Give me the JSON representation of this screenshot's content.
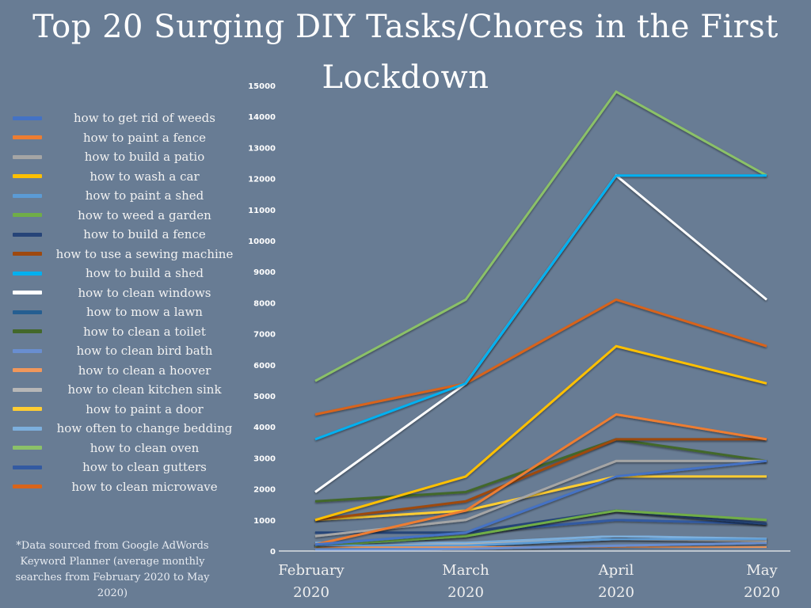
{
  "chart_data": {
    "type": "line",
    "title": "Top 20 Surging DIY Tasks/Chores in the First Lockdown",
    "title_lines": [
      "Top 20 Surging DIY Tasks/Chores in the First",
      "Lockdown"
    ],
    "xlabel": "",
    "ylabel": "",
    "categories": [
      "February 2020",
      "March 2020",
      "April 2020",
      "May 2020"
    ],
    "category_lines": [
      [
        "February",
        "2020"
      ],
      [
        "March",
        "2020"
      ],
      [
        "April",
        "2020"
      ],
      [
        "May",
        "2020"
      ]
    ],
    "ylim": [
      0,
      15000
    ],
    "yticks": [
      0,
      1000,
      2000,
      3000,
      4000,
      5000,
      6000,
      7000,
      8000,
      9000,
      10000,
      11000,
      12000,
      13000,
      14000,
      15000
    ],
    "grid": false,
    "legend_position": "left",
    "series": [
      {
        "name": "how to get rid of weeds",
        "color": "#4472c4",
        "values": [
          210,
          590,
          2400,
          2900
        ]
      },
      {
        "name": "how to paint a fence",
        "color": "#ed7d31",
        "values": [
          210,
          1300,
          4400,
          3600
        ]
      },
      {
        "name": "how to build a patio",
        "color": "#a5a5a5",
        "values": [
          480,
          1000,
          2900,
          2900
        ]
      },
      {
        "name": "how to wash a car",
        "color": "#ffc000",
        "values": [
          1000,
          2400,
          6600,
          5400
        ]
      },
      {
        "name": "how to paint a shed",
        "color": "#5b9bd5",
        "values": [
          170,
          170,
          390,
          390
        ]
      },
      {
        "name": "how to weed a garden",
        "color": "#70ad47",
        "values": [
          170,
          480,
          1300,
          1000
        ]
      },
      {
        "name": "how to build a fence",
        "color": "#264478",
        "values": [
          590,
          590,
          1300,
          880
        ]
      },
      {
        "name": "how to use a sewing machine",
        "color": "#9e480e",
        "values": [
          1000,
          1600,
          3600,
          3600
        ]
      },
      {
        "name": "how to build a shed",
        "color": "#00b0f0",
        "values": [
          3600,
          5400,
          12100,
          12100
        ]
      },
      {
        "name": "how to clean windows",
        "color": "#ffffff",
        "values": [
          1900,
          5400,
          12100,
          8100
        ]
      },
      {
        "name": "how to mow a lawn",
        "color": "#255e91",
        "values": [
          170,
          480,
          1300,
          880
        ]
      },
      {
        "name": "how to clean a toilet",
        "color": "#43682b",
        "values": [
          1600,
          1900,
          3600,
          2900
        ]
      },
      {
        "name": "how to clean bird bath",
        "color": "#698ed0",
        "values": [
          30,
          70,
          170,
          260
        ]
      },
      {
        "name": "how to clean a hoover",
        "color": "#f1975a",
        "values": [
          110,
          110,
          140,
          140
        ]
      },
      {
        "name": "how to clean kitchen sink",
        "color": "#b7b7b7",
        "values": [
          170,
          210,
          390,
          320
        ]
      },
      {
        "name": "how to paint a door",
        "color": "#ffcd33",
        "values": [
          1000,
          1300,
          2400,
          2400
        ]
      },
      {
        "name": "how often to change bedding",
        "color": "#7cafdd",
        "values": [
          260,
          260,
          480,
          390
        ]
      },
      {
        "name": "how to clean oven",
        "color": "#8bc168",
        "values": [
          5480,
          8100,
          14800,
          12100
        ]
      },
      {
        "name": "how to clean gutters",
        "color": "#335aa1",
        "values": [
          590,
          590,
          1000,
          880
        ]
      },
      {
        "name": "how to clean microwave",
        "color": "#d8641a",
        "values": [
          4400,
          5400,
          8100,
          6600
        ]
      }
    ]
  },
  "footnote": "*Data sourced from Google AdWords Keyword Planner (average monthly searches from February 2020 to May 2020)"
}
